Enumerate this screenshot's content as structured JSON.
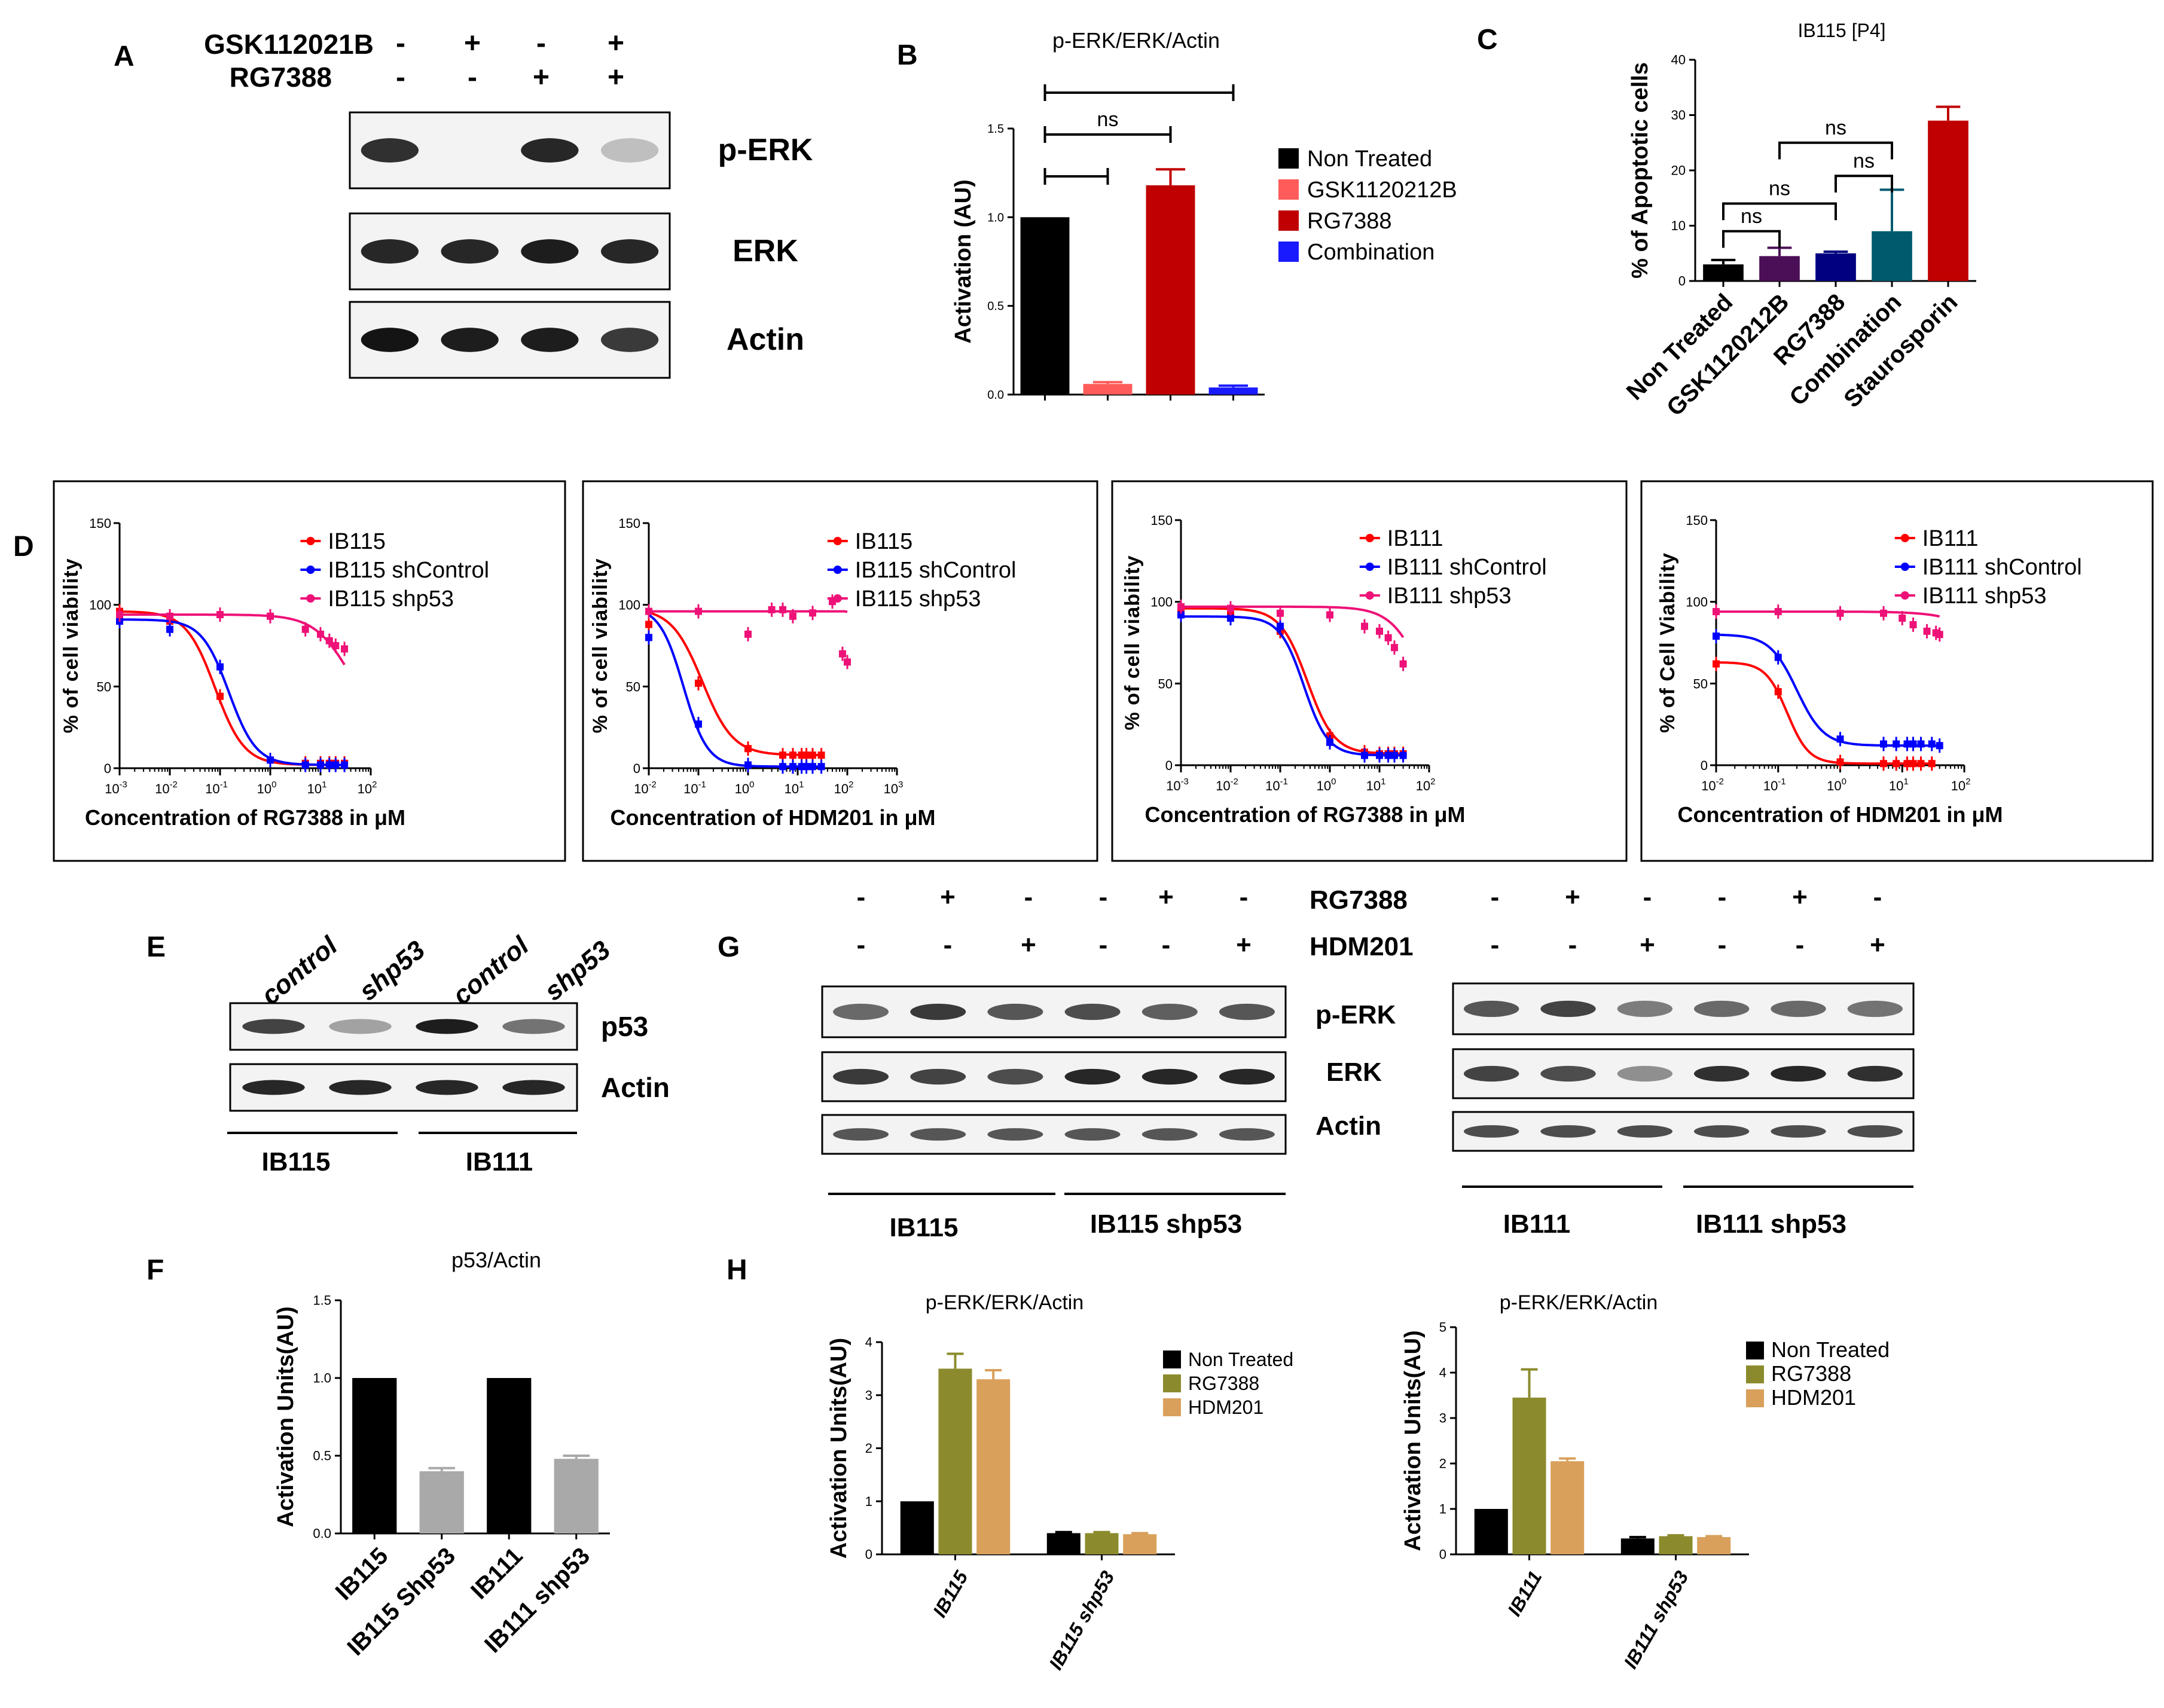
{
  "panel_letters": {
    "A": "A",
    "B": "B",
    "C": "C",
    "D": "D",
    "E": "E",
    "F": "F",
    "G": "G",
    "H": "H"
  },
  "panelA": {
    "treatments": [
      {
        "label": "GSK112021B",
        "signs": [
          "-",
          "+",
          "-",
          "+"
        ]
      },
      {
        "label": "RG7388",
        "signs": [
          "-",
          "-",
          "+",
          "+"
        ]
      }
    ],
    "blots": [
      {
        "label": "p-ERK",
        "bands": [
          0.8,
          0.0,
          0.85,
          0.05
        ]
      },
      {
        "label": "ERK",
        "bands": [
          0.85,
          0.85,
          0.9,
          0.85
        ]
      },
      {
        "label": "Actin",
        "bands": [
          0.95,
          0.9,
          0.9,
          0.75
        ]
      }
    ]
  },
  "panelE": {
    "lanes": [
      "control",
      "shp53",
      "control",
      "shp53"
    ],
    "blots": [
      {
        "label": "p53",
        "bands": [
          0.7,
          0.2,
          0.9,
          0.45
        ]
      },
      {
        "label": "Actin",
        "bands": [
          0.85,
          0.85,
          0.85,
          0.85
        ]
      }
    ],
    "groups": [
      "IB115",
      "IB111"
    ]
  },
  "panelG": {
    "treatments": [
      {
        "label": "RG7388",
        "signs": [
          "-",
          "+",
          "-",
          "-",
          "+",
          "-"
        ]
      },
      {
        "label": "HDM201",
        "signs": [
          "-",
          "-",
          "+",
          "-",
          "-",
          "+"
        ]
      }
    ],
    "blot_labels": [
      "p-ERK",
      "ERK",
      "Actin"
    ],
    "left": {
      "bands": [
        [
          0.5,
          0.75,
          0.6,
          0.65,
          0.55,
          0.6
        ],
        [
          0.75,
          0.7,
          0.65,
          0.85,
          0.85,
          0.85
        ],
        [
          0.6,
          0.6,
          0.6,
          0.6,
          0.6,
          0.6
        ]
      ],
      "groups": [
        "IB115",
        "IB115 shp53"
      ]
    },
    "right": {
      "bands": [
        [
          0.6,
          0.7,
          0.4,
          0.5,
          0.5,
          0.45
        ],
        [
          0.7,
          0.65,
          0.3,
          0.8,
          0.85,
          0.8
        ],
        [
          0.65,
          0.65,
          0.65,
          0.65,
          0.65,
          0.65
        ]
      ],
      "groups": [
        "IB111",
        "IB111 shp53"
      ]
    }
  },
  "chart_data": [
    {
      "id": "B",
      "type": "bar",
      "title": "p-ERK/ERK/Actin",
      "xlabel": "",
      "ylabel": "Activation (AU)",
      "ylim": [
        0,
        1.5
      ],
      "yticks": [
        "0.0",
        "0.5",
        "1.0",
        "1.5"
      ],
      "categories": [
        "Non Treated",
        "GSK1120212B",
        "RG7388",
        "Combination"
      ],
      "values": [
        1.0,
        0.06,
        1.18,
        0.04
      ],
      "errors": [
        0,
        0.01,
        0.09,
        0.01
      ],
      "colors": [
        "#000000",
        "#ff5b5b",
        "#c00000",
        "#1a1aff"
      ],
      "legend": [
        "Non Treated",
        "GSK1120212B",
        "RG7388",
        "Combination"
      ],
      "sig": [
        {
          "from": 0,
          "to": 3,
          "label": ""
        },
        {
          "from": 0,
          "to": 2,
          "label": "ns"
        },
        {
          "from": 0,
          "to": 1,
          "label": ""
        }
      ]
    },
    {
      "id": "C",
      "type": "bar",
      "title": "IB115 [P4]",
      "xlabel": "",
      "ylabel": "% of Apoptotic cells",
      "ylim": [
        0,
        40
      ],
      "yticks": [
        "0",
        "10",
        "20",
        "30",
        "40"
      ],
      "categories": [
        "Non Treated",
        "GSK1120212B",
        "RG7388",
        "Combination",
        "Staurosporin"
      ],
      "values": [
        3,
        4.5,
        5,
        9,
        29
      ],
      "errors": [
        0.8,
        1.5,
        0.3,
        7.5,
        2.5
      ],
      "colors": [
        "#000000",
        "#4b0f57",
        "#000080",
        "#005a6e",
        "#c00000"
      ],
      "sig": [
        {
          "from": 0,
          "to": 1,
          "label": "ns",
          "level": 9
        },
        {
          "from": 0,
          "to": 2,
          "label": "ns",
          "level": 14
        },
        {
          "from": 2,
          "to": 3,
          "label": "ns",
          "level": 19
        },
        {
          "from": 1,
          "to": 3,
          "label": "ns",
          "level": 25
        }
      ]
    },
    {
      "id": "D1",
      "type": "line",
      "xlabel": "Concentration of RG7388 in μM",
      "ylabel": "% of cell viability",
      "xlog": [
        -3,
        2
      ],
      "ylim": [
        0,
        150
      ],
      "yticks": [
        "0",
        "50",
        "100",
        "150"
      ],
      "xticks": [
        {
          "b": "10",
          "e": "-3"
        },
        {
          "b": "10",
          "e": "-2"
        },
        {
          "b": "10",
          "e": "-1"
        },
        {
          "b": "10",
          "e": "0"
        },
        {
          "b": "10",
          "e": "1"
        },
        {
          "b": "10",
          "e": "2"
        }
      ],
      "series": [
        {
          "name": "IB115",
          "color": "#ff0000",
          "top": 96,
          "bottom": 2,
          "ic50": 0.08,
          "hill": 1.5,
          "points": [
            [
              0.001,
              96
            ],
            [
              0.01,
              90
            ],
            [
              0.1,
              44
            ],
            [
              1,
              5
            ],
            [
              5,
              3
            ],
            [
              10,
              3
            ],
            [
              15,
              3
            ],
            [
              20,
              3
            ],
            [
              30,
              3
            ]
          ]
        },
        {
          "name": "IB115 shControl",
          "color": "#0000ff",
          "top": 91,
          "bottom": 2,
          "ic50": 0.15,
          "hill": 1.6,
          "points": [
            [
              0.001,
              90
            ],
            [
              0.01,
              85
            ],
            [
              0.1,
              62
            ],
            [
              1,
              5
            ],
            [
              5,
              2
            ],
            [
              10,
              2
            ],
            [
              15,
              2
            ],
            [
              20,
              2
            ],
            [
              30,
              2
            ]
          ]
        },
        {
          "name": "IB115 shp53",
          "color": "#ee1177",
          "top": 94,
          "bottom": 20,
          "ic50": 40,
          "hill": 1.2,
          "points": [
            [
              0.001,
              94
            ],
            [
              0.01,
              93
            ],
            [
              0.1,
              94
            ],
            [
              1,
              93
            ],
            [
              5,
              85
            ],
            [
              10,
              82
            ],
            [
              15,
              78
            ],
            [
              20,
              75
            ],
            [
              30,
              73
            ]
          ]
        }
      ]
    },
    {
      "id": "D2",
      "type": "line",
      "xlabel": "Concentration of HDM201 in μM",
      "ylabel": "% of cell viability",
      "xlog": [
        -2,
        3
      ],
      "ylim": [
        0,
        150
      ],
      "yticks": [
        "0",
        "50",
        "100",
        "150"
      ],
      "xticks": [
        {
          "b": "10",
          "e": "-2"
        },
        {
          "b": "10",
          "e": "-1"
        },
        {
          "b": "10",
          "e": "0"
        },
        {
          "b": "10",
          "e": "1"
        },
        {
          "b": "10",
          "e": "2"
        },
        {
          "b": "10",
          "e": "3"
        }
      ],
      "series": [
        {
          "name": "IB115",
          "color": "#ff0000",
          "top": 98,
          "bottom": 8,
          "ic50": 0.12,
          "hill": 1.4,
          "points": [
            [
              0.01,
              88
            ],
            [
              0.1,
              52
            ],
            [
              1,
              12
            ],
            [
              5,
              8
            ],
            [
              8,
              8
            ],
            [
              12,
              8
            ],
            [
              15,
              8
            ],
            [
              20,
              8
            ],
            [
              30,
              8
            ]
          ]
        },
        {
          "name": "IB115 shControl",
          "color": "#0000ff",
          "top": 99,
          "bottom": 1,
          "ic50": 0.05,
          "hill": 1.8,
          "points": [
            [
              0.01,
              80
            ],
            [
              0.1,
              27
            ],
            [
              1,
              2
            ],
            [
              5,
              1
            ],
            [
              8,
              1
            ],
            [
              12,
              1
            ],
            [
              15,
              1
            ],
            [
              20,
              1
            ],
            [
              30,
              1
            ]
          ]
        },
        {
          "name": "IB115 shp53",
          "color": "#ee1177",
          "top": 96,
          "bottom": 0,
          "ic50": 120,
          "hill": 30,
          "points": [
            [
              0.01,
              96
            ],
            [
              0.1,
              96
            ],
            [
              1,
              82
            ],
            [
              3,
              97
            ],
            [
              5,
              97
            ],
            [
              8,
              93
            ],
            [
              20,
              95
            ],
            [
              50,
              102
            ],
            [
              80,
              70
            ],
            [
              100,
              65
            ]
          ]
        }
      ]
    },
    {
      "id": "D3",
      "type": "line",
      "xlabel": "Concentration of RG7388 in μM",
      "ylabel": "% of cell viability",
      "xlog": [
        -3,
        2
      ],
      "ylim": [
        0,
        150
      ],
      "yticks": [
        "0",
        "50",
        "100",
        "150"
      ],
      "xticks": [
        {
          "b": "10",
          "e": "-3"
        },
        {
          "b": "10",
          "e": "-2"
        },
        {
          "b": "10",
          "e": "-1"
        },
        {
          "b": "10",
          "e": "0"
        },
        {
          "b": "10",
          "e": "1"
        },
        {
          "b": "10",
          "e": "2"
        }
      ],
      "series": [
        {
          "name": "IB111",
          "color": "#ff0000",
          "top": 96,
          "bottom": 7,
          "ic50": 0.35,
          "hill": 1.6,
          "points": [
            [
              0.001,
              95
            ],
            [
              0.01,
              94
            ],
            [
              0.1,
              82
            ],
            [
              1,
              18
            ],
            [
              5,
              8
            ],
            [
              10,
              7
            ],
            [
              15,
              7
            ],
            [
              20,
              7
            ],
            [
              30,
              7
            ]
          ]
        },
        {
          "name": "IB111 shControl",
          "color": "#0000ff",
          "top": 91,
          "bottom": 6,
          "ic50": 0.3,
          "hill": 1.8,
          "points": [
            [
              0.001,
              92
            ],
            [
              0.01,
              90
            ],
            [
              0.1,
              85
            ],
            [
              1,
              14
            ],
            [
              5,
              6
            ],
            [
              10,
              6
            ],
            [
              15,
              6
            ],
            [
              20,
              6
            ],
            [
              30,
              6
            ]
          ]
        },
        {
          "name": "IB111 shp53",
          "color": "#ee1177",
          "top": 97,
          "bottom": 0,
          "ic50": 90,
          "hill": 1.3,
          "points": [
            [
              0.001,
              97
            ],
            [
              0.01,
              96
            ],
            [
              0.1,
              93
            ],
            [
              1,
              92
            ],
            [
              5,
              85
            ],
            [
              10,
              82
            ],
            [
              15,
              78
            ],
            [
              20,
              72
            ],
            [
              30,
              62
            ]
          ]
        }
      ]
    },
    {
      "id": "D4",
      "type": "line",
      "xlabel": "Concentration of HDM201 in μM",
      "ylabel": "% of Cell Viability",
      "xlog": [
        -2,
        2
      ],
      "ylim": [
        0,
        150
      ],
      "yticks": [
        "0",
        "50",
        "100",
        "150"
      ],
      "xticks": [
        {
          "b": "10",
          "e": "-2"
        },
        {
          "b": "10",
          "e": "-1"
        },
        {
          "b": "10",
          "e": "0"
        },
        {
          "b": "10",
          "e": "1"
        },
        {
          "b": "10",
          "e": "2"
        }
      ],
      "series": [
        {
          "name": "IB111",
          "color": "#ff0000",
          "top": 63,
          "bottom": 1,
          "ic50": 0.14,
          "hill": 2.5,
          "points": [
            [
              0.01,
              62
            ],
            [
              0.1,
              45
            ],
            [
              1,
              2
            ],
            [
              5,
              1
            ],
            [
              8,
              1
            ],
            [
              12,
              1
            ],
            [
              15,
              1
            ],
            [
              20,
              1
            ],
            [
              30,
              1
            ]
          ]
        },
        {
          "name": "IB111 shControl",
          "color": "#0000ff",
          "top": 80,
          "bottom": 12,
          "ic50": 0.2,
          "hill": 2,
          "points": [
            [
              0.01,
              79
            ],
            [
              0.1,
              66
            ],
            [
              1,
              16
            ],
            [
              5,
              13
            ],
            [
              8,
              13
            ],
            [
              12,
              13
            ],
            [
              15,
              13
            ],
            [
              20,
              13
            ],
            [
              30,
              13
            ],
            [
              40,
              12
            ]
          ]
        },
        {
          "name": "IB111 shp53",
          "color": "#ee1177",
          "top": 94,
          "bottom": 0,
          "ic50": 700,
          "hill": 1.2,
          "points": [
            [
              0.01,
              94
            ],
            [
              0.1,
              94
            ],
            [
              1,
              93
            ],
            [
              5,
              93
            ],
            [
              10,
              90
            ],
            [
              15,
              86
            ],
            [
              25,
              82
            ],
            [
              35,
              81
            ],
            [
              40,
              80
            ]
          ]
        }
      ]
    },
    {
      "id": "F",
      "type": "bar",
      "title": "p53/Actin",
      "xlabel": "",
      "ylabel": "Activation Units(AU)",
      "ylim": [
        0,
        1.5
      ],
      "yticks": [
        "0.0",
        "0.5",
        "1.0",
        "1.5"
      ],
      "categories": [
        "IB115",
        "IB115 Shp53",
        "IB111",
        "IB111 shp53"
      ],
      "values": [
        1.0,
        0.4,
        1.0,
        0.48
      ],
      "errors": [
        0,
        0.02,
        0,
        0.02
      ],
      "colors": [
        "#000000",
        "#a9a9a9",
        "#000000",
        "#a9a9a9"
      ]
    },
    {
      "id": "H1",
      "type": "bar",
      "title": "p-ERK/ERK/Actin",
      "xlabel": "",
      "ylabel": "Activation Units(AU)",
      "ylim": [
        0,
        4
      ],
      "yticks": [
        "0",
        "1",
        "2",
        "3",
        "4"
      ],
      "categories": [
        "IB115",
        "IB115 shp53"
      ],
      "series": [
        {
          "name": "Non Treated",
          "color": "#000000",
          "values": [
            1.0,
            0.4
          ],
          "errors": [
            0,
            0.02
          ]
        },
        {
          "name": "RG7388",
          "color": "#8b8b2e",
          "values": [
            3.5,
            0.4
          ],
          "errors": [
            0.28,
            0.02
          ]
        },
        {
          "name": "HDM201",
          "color": "#d9a05b",
          "values": [
            3.3,
            0.38
          ],
          "errors": [
            0.17,
            0.02
          ]
        }
      ]
    },
    {
      "id": "H2",
      "type": "bar",
      "title": "p-ERK/ERK/Actin",
      "xlabel": "",
      "ylabel": "Activation Units(AU)",
      "ylim": [
        0,
        5
      ],
      "yticks": [
        "0",
        "1",
        "2",
        "3",
        "4",
        "5"
      ],
      "categories": [
        "IB111",
        "IB111 shp53"
      ],
      "series": [
        {
          "name": "Non Treated",
          "color": "#000000",
          "values": [
            1.0,
            0.35
          ],
          "errors": [
            0,
            0.03
          ]
        },
        {
          "name": "RG7388",
          "color": "#8b8b2e",
          "values": [
            3.45,
            0.4
          ],
          "errors": [
            0.62,
            0.02
          ]
        },
        {
          "name": "HDM201",
          "color": "#d9a05b",
          "values": [
            2.05,
            0.38
          ],
          "errors": [
            0.06,
            0.02
          ]
        }
      ]
    }
  ]
}
